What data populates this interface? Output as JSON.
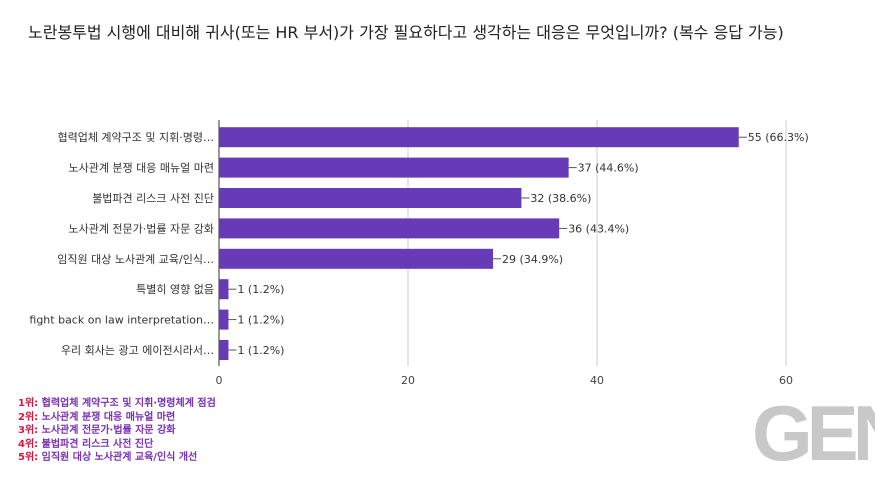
{
  "chart_data": {
    "type": "bar",
    "orientation": "horizontal",
    "title": "노란봉투법 시행에 대비해 귀사(또는 HR 부서)가 가장 필요하다고 생각하는 대응은 무엇입니까? (복수 응답 가능)",
    "categories": [
      "협력업체 계약구조 및 지휘·명령…",
      "노사관계 분쟁 대응 매뉴얼 마련",
      "불법파견 리스크 사전 진단",
      "노사관계 전문가·법률 자문 강화",
      "임직원 대상 노사관계 교육/인식…",
      "특별히 영향 없음",
      "fight back on law interpretation…",
      "우리 회사는 광고 에이전시라서…"
    ],
    "values": [
      55,
      37,
      32,
      36,
      29,
      1,
      1,
      1
    ],
    "data_labels": [
      "55 (66.3%)",
      "37 (44.6%)",
      "32 (38.6%)",
      "36 (43.4%)",
      "29 (34.9%)",
      "1 (1.2%)",
      "1 (1.2%)",
      "1 (1.2%)"
    ],
    "xlim": [
      0,
      60
    ],
    "xticks": [
      "0",
      "20",
      "40",
      "60"
    ],
    "grid": true,
    "bar_color": "#673ab7"
  },
  "notes": [
    {
      "rank": "1위:",
      "text": "협력업체 계약구조 및 지휘·명령체계 점검"
    },
    {
      "rank": "2위:",
      "text": "노사관계 분쟁 대응 매뉴얼 마련"
    },
    {
      "rank": "3위:",
      "text": "노사관계 전문가·법률 자문 강화"
    },
    {
      "rank": "4위:",
      "text": "불법파견 리스크 사전 진단"
    },
    {
      "rank": "5위:",
      "text": "임직원 대상 노사관계 교육/인식 개선"
    }
  ],
  "logo": "GEN"
}
